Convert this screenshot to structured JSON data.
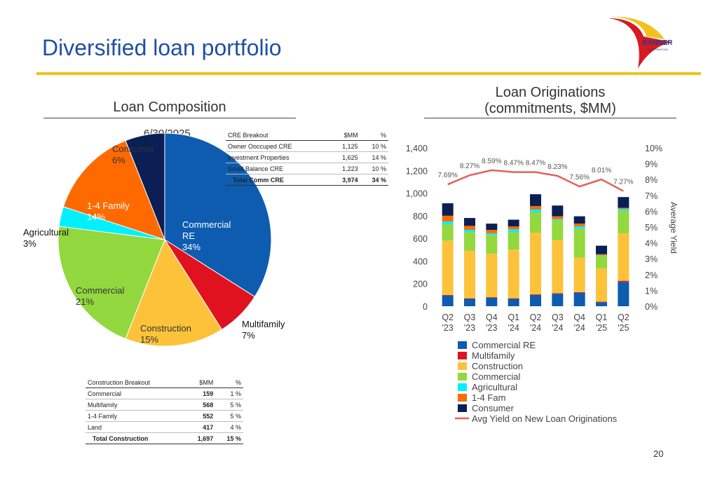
{
  "header": {
    "title": "Diversified loan portfolio",
    "logo_text": "BANNER",
    "logo_subtext": "CORPORATION"
  },
  "left": {
    "heading": "Loan Composition",
    "date": "6/30/2025"
  },
  "right": {
    "heading_line1": "Loan Originations",
    "heading_line2": "(commitments, $MM)"
  },
  "cre_table": {
    "headers": [
      "CRE Breakout",
      "$MM",
      "%"
    ],
    "rows": [
      {
        "label": "Owner Ooccuped  CRE",
        "mm": "1,125",
        "pct": "10  %"
      },
      {
        "label": "Investment Properties",
        "mm": "1,625",
        "pct": "14  %"
      },
      {
        "label": "Small Balance CRE",
        "mm": "1,223",
        "pct": "10  %"
      }
    ],
    "total": {
      "label": "Total Comm CRE",
      "mm": "3,974",
      "pct": "34  %"
    }
  },
  "construction_table": {
    "headers": [
      "Construction Breakout",
      "$MM",
      "%"
    ],
    "rows": [
      {
        "label": "Commercial",
        "mm": "159",
        "pct": "1  %"
      },
      {
        "label": "Multifamily",
        "mm": "568",
        "pct": "5  %"
      },
      {
        "label": "1-4 Family",
        "mm": "552",
        "pct": "5  %"
      },
      {
        "label": "Land",
        "mm": "417",
        "pct": "4  %"
      }
    ],
    "total": {
      "label": "Total Construction",
      "mm": "1,697",
      "pct": "15  %"
    }
  },
  "page_number": "20",
  "chart_data": [
    {
      "type": "pie",
      "slices": [
        {
          "name": "Commercial RE",
          "label_lines": [
            "Commercial",
            "RE",
            "34%"
          ],
          "value": 34,
          "color": "#0d5cb0"
        },
        {
          "name": "Multifamily",
          "label_lines": [
            "Multifamily",
            "7%"
          ],
          "value": 7,
          "color": "#e0121f"
        },
        {
          "name": "Construction",
          "label_lines": [
            "Construction",
            "15%"
          ],
          "value": 15,
          "color": "#fcc33a"
        },
        {
          "name": "Commercial",
          "label_lines": [
            "Commercial",
            "21%"
          ],
          "value": 21,
          "color": "#92d83e"
        },
        {
          "name": "Agricultural",
          "label_lines": [
            "Agricultural",
            "3%"
          ],
          "value": 3,
          "color": "#00f0ff"
        },
        {
          "name": "1-4 Family",
          "label_lines": [
            "1-4 Family",
            "14%"
          ],
          "value": 14,
          "color": "#ff6a00"
        },
        {
          "name": "Consumer",
          "label_lines": [
            "Consumer",
            "6%"
          ],
          "value": 6,
          "color": "#0b1f54"
        }
      ]
    },
    {
      "type": "bar",
      "stacked": true,
      "categories": [
        "Q2\n'23",
        "Q3\n'23",
        "Q4\n'23",
        "Q1\n'24",
        "Q2\n'24",
        "Q3\n'24",
        "Q4\n'24",
        "Q1\n'25",
        "Q2\n'25"
      ],
      "ylim": [
        0,
        1400
      ],
      "yticks": [
        "0",
        "200",
        "400",
        "600",
        "800",
        "1,000",
        "1,200",
        "1,400"
      ],
      "y2lim": [
        0,
        10
      ],
      "y2ticks": [
        "0%",
        "1%",
        "2%",
        "3%",
        "4%",
        "5%",
        "6%",
        "7%",
        "8%",
        "9%",
        "10%"
      ],
      "y2label": "Average Yield",
      "grid": false,
      "legend_position": "bottom",
      "series": [
        {
          "name": "Commercial RE",
          "color": "#0d5cb0",
          "values": [
            95,
            65,
            75,
            65,
            100,
            110,
            120,
            35,
            215
          ]
        },
        {
          "name": "Multifamily",
          "color": "#e0121f",
          "values": [
            5,
            5,
            5,
            5,
            5,
            5,
            5,
            5,
            10
          ]
        },
        {
          "name": "Construction",
          "color": "#fcc33a",
          "values": [
            480,
            420,
            385,
            430,
            545,
            470,
            305,
            295,
            420
          ]
        },
        {
          "name": "Commercial",
          "color": "#92d83e",
          "values": [
            145,
            165,
            165,
            155,
            180,
            175,
            255,
            110,
            200
          ]
        },
        {
          "name": "Agricultural",
          "color": "#00f0ff",
          "values": [
            25,
            20,
            15,
            25,
            25,
            10,
            20,
            5,
            15
          ]
        },
        {
          "name": "1-4 Fam",
          "color": "#ff6a00",
          "values": [
            50,
            35,
            30,
            25,
            30,
            25,
            25,
            10,
            10
          ]
        },
        {
          "name": "Consumer",
          "color": "#0b1f54",
          "values": [
            110,
            70,
            55,
            60,
            105,
            95,
            65,
            75,
            95
          ]
        }
      ],
      "line": {
        "name": "Avg Yield on New Loan Originations",
        "color": "#e8605a",
        "values": [
          7.69,
          8.27,
          8.59,
          8.47,
          8.47,
          8.23,
          7.56,
          8.01,
          7.27
        ],
        "labels": [
          "7.69%",
          "8.27%",
          "8.59%",
          "8.47%",
          "8.47%",
          "8.23%",
          "7.56%",
          "8.01%",
          "7.27%"
        ]
      }
    }
  ]
}
